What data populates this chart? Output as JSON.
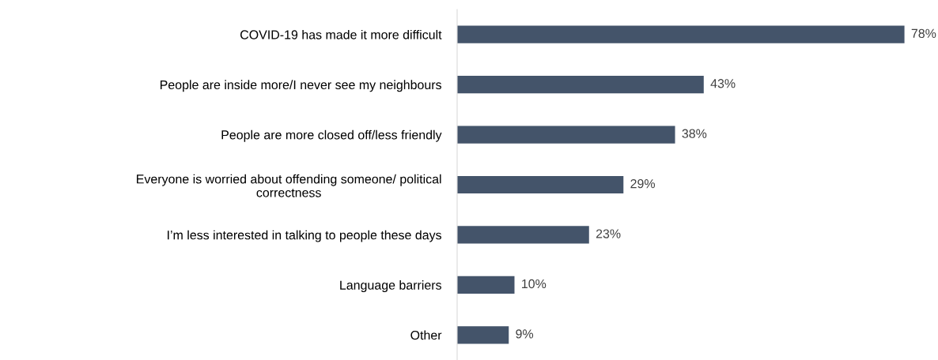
{
  "chart_data": {
    "type": "bar",
    "orientation": "horizontal",
    "categories": [
      "COVID-19 has made it more difficult",
      "People are inside more/I never see my neighbours",
      "People are more closed off/less friendly",
      "Everyone is worried about offending someone/ political\ncorrectness",
      "I’m less interested in talking to people these days",
      "Language barriers",
      "Other"
    ],
    "values": [
      78,
      43,
      38,
      29,
      23,
      10,
      9
    ],
    "value_labels": [
      "78%",
      "43%",
      "38%",
      "29%",
      "23%",
      "10%",
      "9%"
    ],
    "color": "#44546a",
    "grid": false,
    "legend": false
  }
}
